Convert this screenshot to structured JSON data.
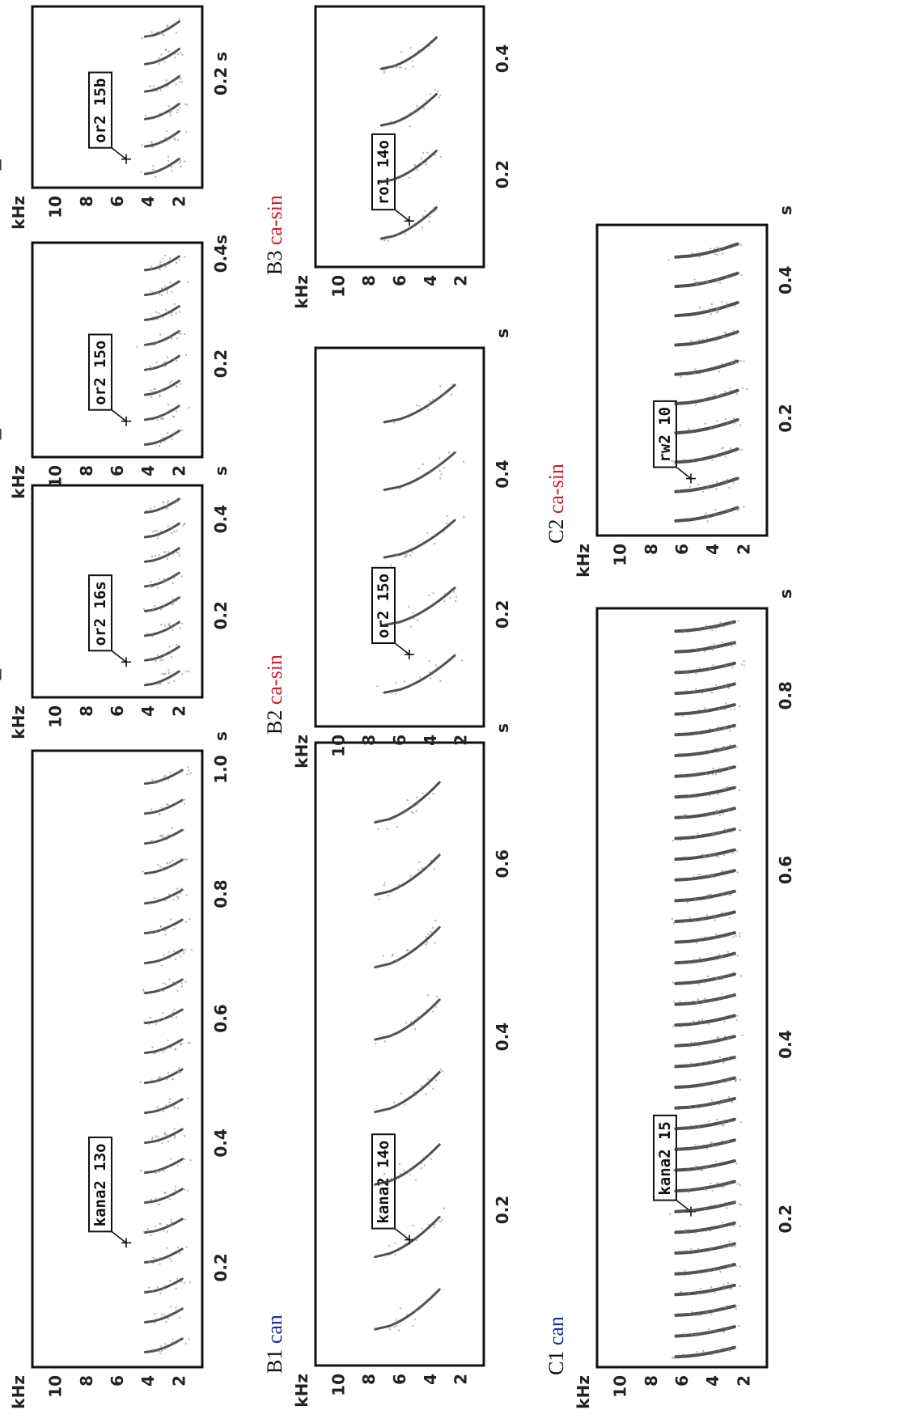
{
  "colors": {
    "ca_sin": "#d01c2a",
    "can": "#1c2aa0",
    "ink": "#111111"
  },
  "panels": [
    {
      "id": "A1",
      "kind": "can",
      "tag": "kana2 13o",
      "ylabel": "kHz",
      "yticks": [
        "10",
        "8",
        "6",
        "4",
        "2"
      ],
      "xticks": [
        {
          "label": "0.2",
          "t": 0.2
        },
        {
          "label": "0.4",
          "t": 0.4
        },
        {
          "label": "0.6",
          "t": 0.6
        },
        {
          "label": "0.8",
          "t": 0.8
        },
        {
          "label": "1.0",
          "t": 1.0
        }
      ],
      "xunit": "s"
    },
    {
      "id": "A2_a",
      "kind": "ca-sin",
      "tag": "or2 16s",
      "ylabel": "kHz",
      "yticks": [
        "10",
        "8",
        "6",
        "4",
        "2"
      ],
      "xticks": [
        {
          "label": "0.2",
          "t": 0.2
        },
        {
          "label": "0.4",
          "t": 0.4
        }
      ],
      "xunit": "s"
    },
    {
      "id": "A2_b",
      "kind": "ca-sin",
      "tag": "or2 15o",
      "ylabel": "kHz",
      "yticks": [
        "10",
        "8",
        "6",
        "4",
        "2"
      ],
      "xticks": [
        {
          "label": "0.2",
          "t": 0.2
        },
        {
          "label": "0.4s",
          "t": 0.4
        }
      ],
      "xunit": ""
    },
    {
      "id": "A2_c",
      "kind": "ca-sin",
      "tag": "or2 15b",
      "ylabel": "kHz",
      "yticks": [
        "10",
        "8",
        "6",
        "4",
        "2"
      ],
      "xticks": [
        {
          "label": "0.2 s",
          "t": 0.2
        }
      ],
      "xunit": ""
    },
    {
      "id": "B1",
      "kind": "can",
      "tag": "kana2 14o",
      "ylabel": "kHz",
      "yticks": [
        "10",
        "8",
        "6",
        "4",
        "2"
      ],
      "xticks": [
        {
          "label": "0.2",
          "t": 0.2
        },
        {
          "label": "0.4",
          "t": 0.4
        },
        {
          "label": "0.6",
          "t": 0.6
        }
      ],
      "xunit": "s"
    },
    {
      "id": "B2",
      "kind": "ca-sin",
      "tag": "or2 15o",
      "ylabel": "kHz",
      "yticks": [
        "10",
        "8",
        "6",
        "4",
        "2"
      ],
      "xticks": [
        {
          "label": "0.2",
          "t": 0.2
        },
        {
          "label": "0.4",
          "t": 0.4
        }
      ],
      "xunit": "s"
    },
    {
      "id": "B3",
      "kind": "ca-sin",
      "tag": "ro1 14o",
      "ylabel": "kHz",
      "yticks": [
        "10",
        "8",
        "6",
        "4",
        "2"
      ],
      "xticks": [
        {
          "label": "0.2",
          "t": 0.2
        },
        {
          "label": "0.4",
          "t": 0.4
        }
      ],
      "xunit": "s"
    },
    {
      "id": "C1",
      "kind": "can",
      "tag": "kana2 15",
      "ylabel": "kHz",
      "yticks": [
        "10",
        "8",
        "6",
        "4",
        "2"
      ],
      "xticks": [
        {
          "label": "0.2",
          "t": 0.2
        },
        {
          "label": "0.4",
          "t": 0.4
        },
        {
          "label": "0.6",
          "t": 0.6
        },
        {
          "label": "0.8",
          "t": 0.8
        }
      ],
      "xunit": "s"
    },
    {
      "id": "C2",
      "kind": "ca-sin",
      "tag": "rw2 10",
      "ylabel": "kHz",
      "yticks": [
        "10",
        "8",
        "6",
        "4",
        "2"
      ],
      "xticks": [
        {
          "label": "0.2",
          "t": 0.2
        },
        {
          "label": "0.4",
          "t": 0.4
        }
      ],
      "xunit": "s"
    }
  ]
}
